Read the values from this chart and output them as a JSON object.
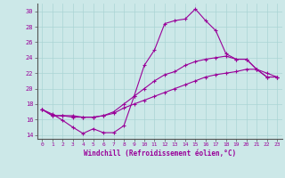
{
  "xlabel": "Windchill (Refroidissement éolien,°C)",
  "ylabel": "",
  "bg_color": "#cce8e8",
  "line_color": "#990099",
  "grid_color": "#aad4d4",
  "xlim": [
    -0.5,
    23.5
  ],
  "ylim": [
    13.5,
    31.0
  ],
  "yticks": [
    14,
    16,
    18,
    20,
    22,
    24,
    26,
    28,
    30
  ],
  "xticks": [
    0,
    1,
    2,
    3,
    4,
    5,
    6,
    7,
    8,
    9,
    10,
    11,
    12,
    13,
    14,
    15,
    16,
    17,
    18,
    19,
    20,
    21,
    22,
    23
  ],
  "line1_x": [
    0,
    1,
    2,
    3,
    4,
    5,
    6,
    7,
    8,
    9,
    10,
    11,
    12,
    13,
    14,
    15,
    16,
    17,
    18,
    19,
    20,
    21,
    22,
    23
  ],
  "line1_y": [
    17.3,
    16.7,
    15.9,
    15.0,
    14.2,
    14.8,
    14.3,
    14.3,
    15.2,
    19.0,
    23.0,
    25.0,
    28.4,
    28.8,
    29.0,
    30.3,
    28.8,
    27.5,
    24.5,
    23.8,
    23.8,
    22.5,
    22.0,
    21.5
  ],
  "line2_x": [
    0,
    1,
    2,
    3,
    4,
    5,
    6,
    7,
    8,
    9,
    10,
    11,
    12,
    13,
    14,
    15,
    16,
    17,
    18,
    19,
    20,
    21,
    22,
    23
  ],
  "line2_y": [
    17.3,
    16.5,
    16.5,
    16.3,
    16.3,
    16.3,
    16.5,
    17.0,
    18.0,
    19.0,
    20.0,
    21.0,
    21.8,
    22.2,
    23.0,
    23.5,
    23.8,
    24.0,
    24.2,
    23.8,
    23.8,
    22.5,
    21.5,
    21.5
  ],
  "line3_x": [
    0,
    1,
    2,
    3,
    4,
    5,
    6,
    7,
    8,
    9,
    10,
    11,
    12,
    13,
    14,
    15,
    16,
    17,
    18,
    19,
    20,
    21,
    22,
    23
  ],
  "line3_y": [
    17.3,
    16.5,
    16.5,
    16.5,
    16.3,
    16.3,
    16.5,
    16.8,
    17.5,
    18.0,
    18.5,
    19.0,
    19.5,
    20.0,
    20.5,
    21.0,
    21.5,
    21.8,
    22.0,
    22.2,
    22.5,
    22.5,
    21.5,
    21.5
  ]
}
